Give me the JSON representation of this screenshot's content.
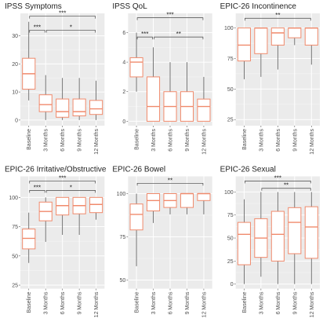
{
  "chart_data": [
    {
      "type": "box",
      "title": "IPSS Symptoms",
      "categories": [
        "Baseline",
        "3 Months",
        "6 Months",
        "9 Months",
        "12 Months"
      ],
      "low": [
        7,
        0,
        0,
        0,
        0
      ],
      "q1": [
        11,
        3,
        1,
        1.5,
        2
      ],
      "median": [
        16.5,
        5.5,
        3,
        3,
        4
      ],
      "q3": [
        22,
        9,
        7.5,
        7.5,
        7
      ],
      "high": [
        35,
        16,
        15,
        15,
        14
      ],
      "ylim": [
        -2,
        38
      ],
      "yticks": [
        0,
        10,
        20,
        30
      ],
      "grid": true,
      "color": "#f08a6c",
      "annotations": [
        {
          "text": "***",
          "from": "Baseline",
          "to": "12 Months",
          "y": 37
        },
        {
          "text": "***",
          "from": "Baseline",
          "to": "3 Months",
          "y": 32
        },
        {
          "text": "*",
          "from": "3 Months",
          "to": "12 Months",
          "y": 32
        }
      ]
    },
    {
      "type": "box",
      "title": "IPSS QoL",
      "categories": [
        "Baseline",
        "3 Months",
        "6 Months",
        "9 Months",
        "12 Months"
      ],
      "low": [
        2,
        0,
        0,
        0,
        0
      ],
      "q1": [
        3,
        0,
        0,
        0,
        0
      ],
      "median": [
        4,
        1,
        1,
        1,
        1
      ],
      "q3": [
        4.3,
        3,
        2,
        2,
        1.5
      ],
      "high": [
        6,
        5,
        4,
        4,
        3
      ],
      "ylim": [
        -0.3,
        7.3
      ],
      "yticks": [
        0,
        2,
        4,
        6
      ],
      "grid": true,
      "color": "#f08a6c",
      "annotations": [
        {
          "text": "***",
          "from": "Baseline",
          "to": "12 Months",
          "y": 7
        },
        {
          "text": "***",
          "from": "Baseline",
          "to": "3 Months",
          "y": 5.7
        },
        {
          "text": "**",
          "from": "3 Months",
          "to": "12 Months",
          "y": 5.7
        }
      ]
    },
    {
      "type": "box",
      "title": "EPIC-26 Incontinence",
      "categories": [
        "Baseline",
        "3 Months",
        "6 Months",
        "9 Months",
        "12 Months"
      ],
      "low": [
        58,
        60,
        66,
        86,
        70
      ],
      "q1": [
        73,
        79,
        86,
        92,
        86
      ],
      "median": [
        86,
        100,
        96,
        100,
        100
      ],
      "q3": [
        100,
        100,
        100,
        100,
        100
      ],
      "high": [
        100,
        100,
        100,
        100,
        100
      ],
      "ylim": [
        20,
        112
      ],
      "yticks": [
        25,
        50,
        75,
        100
      ],
      "grid": true,
      "color": "#f08a6c",
      "annotations": [
        {
          "text": "**",
          "from": "Baseline",
          "to": "12 Months",
          "y": 108
        }
      ]
    },
    {
      "type": "box",
      "title": "EPIC-26 Irritative/Obstructive",
      "categories": [
        "Baseline",
        "3 Months",
        "6 Months",
        "9 Months",
        "12 Months"
      ],
      "low": [
        44,
        62,
        68,
        68,
        81
      ],
      "q1": [
        56,
        80,
        85,
        86,
        87
      ],
      "median": [
        65,
        88,
        93,
        93,
        94
      ],
      "q3": [
        73,
        96,
        100,
        100,
        100
      ],
      "high": [
        87,
        100,
        100,
        100,
        100
      ],
      "ylim": [
        22,
        118
      ],
      "yticks": [
        25,
        50,
        75,
        100
      ],
      "grid": true,
      "color": "#f08a6c",
      "annotations": [
        {
          "text": "***",
          "from": "Baseline",
          "to": "12 Months",
          "y": 114
        },
        {
          "text": "***",
          "from": "Baseline",
          "to": "3 Months",
          "y": 106
        },
        {
          "text": "*",
          "from": "3 Months",
          "to": "12 Months",
          "y": 106
        }
      ]
    },
    {
      "type": "box",
      "title": "EPIC-26 Bowel",
      "categories": [
        "Baseline",
        "3 Months",
        "6 Months",
        "9 Months",
        "12 Months"
      ],
      "low": [
        58,
        83,
        88,
        88,
        88
      ],
      "q1": [
        79,
        90,
        92,
        92,
        96
      ],
      "median": [
        88,
        96,
        96,
        100,
        100
      ],
      "q3": [
        94,
        100,
        100,
        100,
        100
      ],
      "high": [
        100,
        100,
        100,
        100,
        100
      ],
      "ylim": [
        45,
        110
      ],
      "yticks": [
        50,
        75,
        100
      ],
      "grid": true,
      "color": "#f08a6c",
      "annotations": [
        {
          "text": "**",
          "from": "Baseline",
          "to": "12 Months",
          "y": 106
        }
      ]
    },
    {
      "type": "box",
      "title": "EPIC-26 Sexual",
      "categories": [
        "Baseline",
        "3 Months",
        "6 Months",
        "9 Months",
        "12 Months"
      ],
      "low": [
        0,
        8,
        0,
        0,
        0
      ],
      "q1": [
        21,
        29,
        25,
        33,
        28
      ],
      "median": [
        54,
        50,
        54,
        67,
        62
      ],
      "q3": [
        67,
        71,
        79,
        83,
        84
      ],
      "high": [
        92,
        100,
        100,
        100,
        100
      ],
      "ylim": [
        -5,
        117
      ],
      "yticks": [
        0,
        25,
        50,
        75,
        100
      ],
      "grid": true,
      "color": "#f08a6c",
      "annotations": [
        {
          "text": "***",
          "from": "Baseline",
          "to": "12 Months",
          "y": 112
        },
        {
          "text": "**",
          "from": "3 Months",
          "to": "12 Months",
          "y": 104
        }
      ]
    }
  ]
}
